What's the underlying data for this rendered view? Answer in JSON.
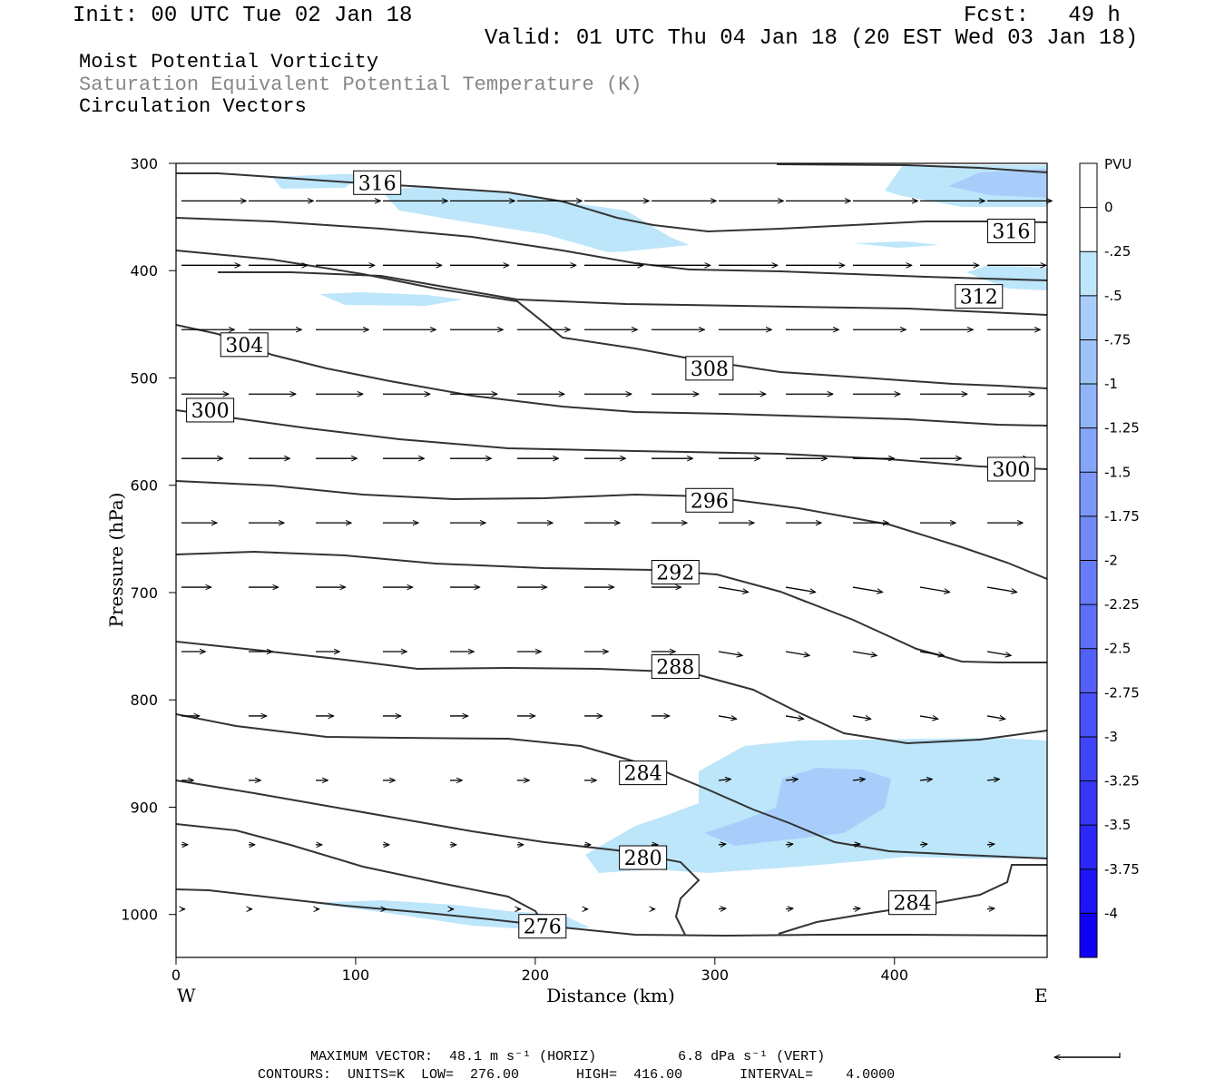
{
  "header": {
    "init": "Init: 00 UTC Tue 02 Jan 18",
    "fcst": "Fcst:   49 h",
    "valid": "Valid: 01 UTC Thu 04 Jan 18 (20 EST Wed 03 Jan 18)",
    "fields": [
      "Moist Potential Vorticity",
      "Saturation Equivalent Potential Temperature (K)",
      "Circulation Vectors"
    ]
  },
  "colors": {
    "contour": "#333333",
    "frame": "#000000",
    "shade_025": "#bde6fb",
    "shade_050": "#a9cdfb",
    "shade_075": "#9cc4f8",
    "field2_text": "#888888"
  },
  "chart_data": {
    "type": "cross-section",
    "xlabel": "Distance (km)",
    "ylabel": "Pressure (hPa)",
    "x_ticks": [
      0,
      100,
      200,
      300,
      400
    ],
    "y_ticks": [
      300,
      400,
      500,
      600,
      700,
      800,
      900,
      1000
    ],
    "xlim": [
      0,
      485
    ],
    "ylim": [
      1040,
      300
    ],
    "x_end_labels": {
      "left": "W",
      "right": "E"
    },
    "colorbar": {
      "title": "PVU",
      "ticks": [
        "0",
        "-.25",
        "-.5",
        "-.75",
        "-1",
        "-1.25",
        "-1.5",
        "-1.75",
        "-2",
        "-2.25",
        "-2.5",
        "-2.75",
        "-3",
        "-3.25",
        "-3.5",
        "-3.75",
        "-4"
      ],
      "colors": [
        "#ffffff",
        "#ffffff",
        "#bde6fb",
        "#a9cdfb",
        "#9cc4f8",
        "#8fb4f8",
        "#85a6f8",
        "#7b98f8",
        "#718af8",
        "#677cf8",
        "#5d6ef8",
        "#5360f8",
        "#4952f8",
        "#3f44f8",
        "#3536f8",
        "#2b28f8",
        "#1e14f8",
        "#0f00f8"
      ]
    },
    "contour_labels": [
      {
        "text": "316",
        "x": 112,
        "p": 318
      },
      {
        "text": "316",
        "x": 465,
        "p": 363
      },
      {
        "text": "312",
        "x": 447,
        "p": 424
      },
      {
        "text": "308",
        "x": 297,
        "p": 491
      },
      {
        "text": "304",
        "x": 38,
        "p": 469
      },
      {
        "text": "300",
        "x": 19,
        "p": 530
      },
      {
        "text": "300",
        "x": 465,
        "p": 585
      },
      {
        "text": "296",
        "x": 297,
        "p": 614
      },
      {
        "text": "292",
        "x": 278,
        "p": 681
      },
      {
        "text": "288",
        "x": 278,
        "p": 769
      },
      {
        "text": "284",
        "x": 260,
        "p": 868
      },
      {
        "text": "280",
        "x": 260,
        "p": 947
      },
      {
        "text": "276",
        "x": 204,
        "p": 1011
      },
      {
        "text": "284",
        "x": 410,
        "p": 989
      }
    ],
    "contours": {
      "units": "K",
      "low": 276.0,
      "high": 416.0,
      "interval": 4.0
    },
    "max_vector": {
      "horizontal": "48.1 m s⁻¹ (HORIZ)",
      "vertical": "6.8 dPa s⁻¹ (VERT)"
    }
  },
  "footer": {
    "line1": "MAXIMUM VECTOR:  48.1 m s⁻¹ (HORIZ)          6.8 dPa s⁻¹ (VERT)",
    "line2": "CONTOURS:  UNITS=K  LOW=  276.00       HIGH=  416.00       INTERVAL=    4.0000"
  }
}
